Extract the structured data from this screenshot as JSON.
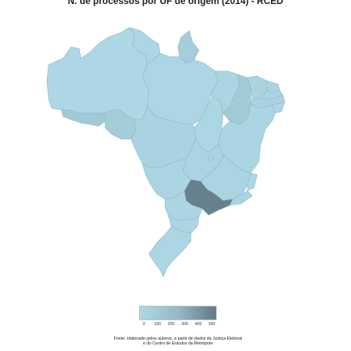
{
  "title": "N. de processos por UF de origem (2014) - RCED",
  "colors": {
    "low": "#aed8e6",
    "mid": "#95b9c5",
    "high": "#617a86",
    "border": "#8fb6c4",
    "background": "#ffffff"
  },
  "legend": {
    "min": 0,
    "max": 500,
    "ticks": [
      "0",
      "100",
      "200",
      "300",
      "400",
      "500"
    ]
  },
  "regions": [
    {
      "shape": "acre",
      "level": 0.25
    },
    {
      "shape": "amazonas",
      "level": 0.02
    },
    {
      "shape": "roraima",
      "level": 0.03
    },
    {
      "shape": "amapa",
      "level": 0.18
    },
    {
      "shape": "para",
      "level": 0.04
    },
    {
      "shape": "maranhao",
      "level": 0.05
    },
    {
      "shape": "piaui",
      "level": 0.22
    },
    {
      "shape": "ceara",
      "level": 0.06
    },
    {
      "shape": "rio-grande-do-norte",
      "level": 0.05
    },
    {
      "shape": "paraiba",
      "level": 0.05
    },
    {
      "shape": "pernambuco",
      "level": 0.08
    },
    {
      "shape": "alagoas",
      "level": 0.04
    },
    {
      "shape": "sergipe",
      "level": 0.03
    },
    {
      "shape": "bahia",
      "level": 0.05
    },
    {
      "shape": "tocantins",
      "level": 0.03
    },
    {
      "shape": "rondonia",
      "level": 0.2
    },
    {
      "shape": "mato-grosso",
      "level": 0.09
    },
    {
      "shape": "mato-grosso-do-sul",
      "level": 0.05
    },
    {
      "shape": "goias",
      "level": 0.06
    },
    {
      "shape": "distrito-federal",
      "level": 0.06
    },
    {
      "shape": "minas-gerais",
      "level": 0.06
    },
    {
      "shape": "espirito-santo",
      "level": 0.04
    },
    {
      "shape": "rio-de-janeiro",
      "level": 0.06
    },
    {
      "shape": "sao-paulo",
      "level": 0.95
    },
    {
      "shape": "parana",
      "level": 0.05
    },
    {
      "shape": "santa-catarina",
      "level": 0.03
    },
    {
      "shape": "rio-grande-do-sul",
      "level": 0.04
    }
  ],
  "source": {
    "line1": "Fonte: elaborado pelos autores, a partir de dados da Justiça Eleitoral",
    "line2": "e do Centro de Estudos da Metrópole"
  }
}
